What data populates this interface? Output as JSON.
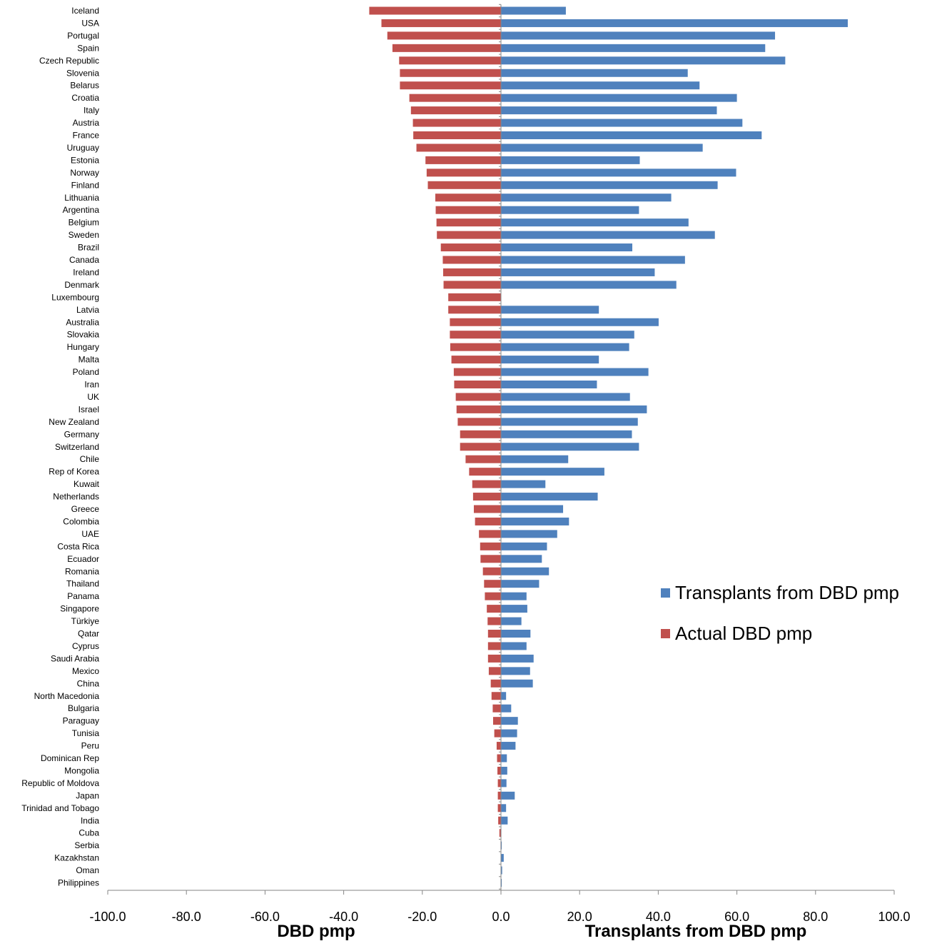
{
  "chart_data": {
    "type": "bar",
    "orientation": "horizontal",
    "categories": [
      "Iceland",
      "USA",
      "Portugal",
      "Spain",
      "Czech Republic",
      "Slovenia",
      "Belarus",
      "Croatia",
      "Italy",
      "Austria",
      "France",
      "Uruguay",
      "Estonia",
      "Norway",
      "Finland",
      "Lithuania",
      "Argentina",
      "Belgium",
      "Sweden",
      "Brazil",
      "Canada",
      "Ireland",
      "Denmark",
      "Luxembourg",
      "Latvia",
      "Australia",
      "Slovakia",
      "Hungary",
      "Malta",
      "Poland",
      "Iran",
      "UK",
      "Israel",
      "New Zealand",
      "Germany",
      "Switzerland",
      "Chile",
      "Rep of Korea",
      "Kuwait",
      "Netherlands",
      "Greece",
      "Colombia",
      "UAE",
      "Costa Rica",
      "Ecuador",
      "Romania",
      "Thailand",
      "Panama",
      "Singapore",
      "Türkiye ",
      "Qatar",
      "Cyprus",
      "Saudi Arabia",
      "Mexico",
      "China",
      "North Macedonia",
      "Bulgaria",
      "Paraguay",
      "Tunisia",
      "Peru",
      "Dominican Rep",
      "Mongolia",
      "Republic of Moldova",
      "Japan",
      "Trinidad and Tobago",
      "India",
      "Cuba",
      "Serbia",
      "Kazakhstan",
      "Oman",
      "Philippines"
    ],
    "series": [
      {
        "name": "Transplants from DBD pmp",
        "color": "#4F81BD",
        "values": [
          16.5,
          88.2,
          69.7,
          67.2,
          72.3,
          47.5,
          50.5,
          60.0,
          54.9,
          61.4,
          66.3,
          51.3,
          35.3,
          59.8,
          55.1,
          43.3,
          35.1,
          47.7,
          54.4,
          33.4,
          46.8,
          39.1,
          44.6,
          0.0,
          24.9,
          40.1,
          33.9,
          32.6,
          24.9,
          37.5,
          24.4,
          32.8,
          37.1,
          34.8,
          33.3,
          35.1,
          17.1,
          26.3,
          11.3,
          24.6,
          15.8,
          17.3,
          14.3,
          11.7,
          10.4,
          12.2,
          9.7,
          6.5,
          6.7,
          5.2,
          7.5,
          6.5,
          8.3,
          7.4,
          8.1,
          1.3,
          2.6,
          4.3,
          4.1,
          3.7,
          1.5,
          1.6,
          1.4,
          3.5,
          1.3,
          1.7,
          0.1,
          0.2,
          0.7,
          0.3,
          0.2
        ]
      },
      {
        "name": "Actual DBD pmp",
        "color": "#C0504D",
        "values": [
          -33.5,
          -30.4,
          -28.9,
          -27.6,
          -25.9,
          -25.7,
          -25.7,
          -23.3,
          -22.9,
          -22.4,
          -22.3,
          -21.5,
          -19.2,
          -18.9,
          -18.6,
          -16.7,
          -16.6,
          -16.4,
          -16.3,
          -15.3,
          -14.8,
          -14.7,
          -14.6,
          -13.4,
          -13.4,
          -13.0,
          -13.0,
          -12.9,
          -12.6,
          -12.0,
          -11.9,
          -11.5,
          -11.3,
          -11.0,
          -10.4,
          -10.4,
          -9.0,
          -8.1,
          -7.3,
          -7.1,
          -6.9,
          -6.6,
          -5.6,
          -5.3,
          -5.2,
          -4.6,
          -4.3,
          -4.1,
          -3.6,
          -3.4,
          -3.3,
          -3.3,
          -3.3,
          -3.1,
          -2.6,
          -2.4,
          -2.1,
          -2.0,
          -1.7,
          -1.1,
          -1.0,
          -0.9,
          -0.8,
          -0.8,
          -0.8,
          -0.7,
          -0.4,
          -0.1,
          0.0,
          0.0,
          0.0
        ]
      }
    ],
    "xlim": [
      -100,
      100
    ],
    "x_ticks": [
      -100,
      -80,
      -60,
      -40,
      -20,
      0,
      20,
      40,
      60,
      80,
      100
    ],
    "tick_format_decimals": 1,
    "xlabel_left": "DBD pmp",
    "xlabel_right": "Transplants from DBD pmp",
    "grid": false,
    "legend_position": "right",
    "legend_order": [
      "Transplants from DBD pmp",
      "Actual DBD pmp"
    ]
  }
}
